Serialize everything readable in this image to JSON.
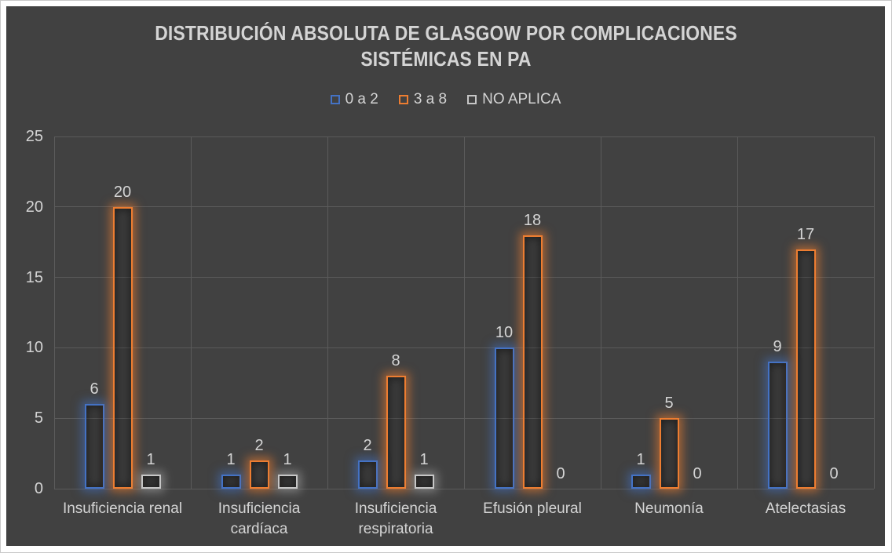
{
  "chart_data": {
    "type": "bar",
    "title": "DISTRIBUCIÓN ABSOLUTA DE  GLASGOW POR COMPLICACIONES SISTÉMICAS EN PA",
    "categories": [
      "Insuficiencia renal",
      "Insuficiencia cardíaca",
      "Insuficiencia respiratoria",
      "Efusión pleural",
      "Neumonía",
      "Atelectasias"
    ],
    "series": [
      {
        "name": "0 a 2",
        "color": "#4472C4",
        "glow": "rgba(68,114,196,0.55)",
        "values": [
          6,
          1,
          2,
          10,
          1,
          9
        ]
      },
      {
        "name": "3 a 8",
        "color": "#ED7D31",
        "glow": "rgba(237,125,49,0.60)",
        "values": [
          20,
          2,
          8,
          18,
          5,
          17
        ]
      },
      {
        "name": "NO APLICA",
        "color": "#C6C6C6",
        "glow": "rgba(198,198,198,0.45)",
        "values": [
          1,
          1,
          1,
          0,
          0,
          0
        ]
      }
    ],
    "ylim": [
      0,
      25
    ],
    "yticks": [
      0,
      5,
      10,
      15,
      20,
      25
    ],
    "grid": true,
    "legend_position": "top",
    "show_data_labels": true
  },
  "style": {
    "background": "#414141",
    "gridline_color": "#5b5b5b",
    "text_color": "#d4d4d4",
    "frame_color": "#ffffff"
  }
}
